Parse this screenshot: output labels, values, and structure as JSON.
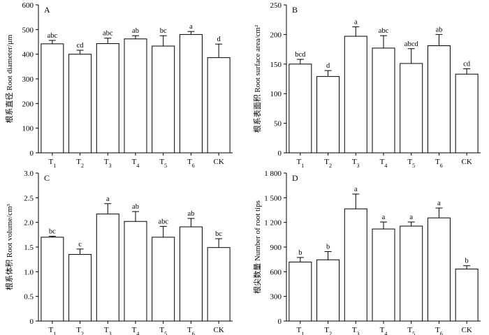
{
  "figure": {
    "description_panels": [
      "A",
      "B",
      "C",
      "D"
    ]
  },
  "chart_data": [
    {
      "panel": "A",
      "type": "bar",
      "ylabel": "根系直径  Root diameter/μm",
      "categories": [
        {
          "base": "T",
          "sub": "1"
        },
        {
          "base": "T",
          "sub": "2"
        },
        {
          "base": "T",
          "sub": "3"
        },
        {
          "base": "T",
          "sub": "4"
        },
        {
          "base": "T",
          "sub": "5"
        },
        {
          "base": "T",
          "sub": "6"
        },
        {
          "base": "CK",
          "sub": ""
        }
      ],
      "values": [
        442,
        400,
        443,
        462,
        433,
        480,
        386
      ],
      "errors": [
        14,
        16,
        22,
        13,
        42,
        12,
        55
      ],
      "significance": [
        "abc",
        "cd",
        "abc",
        "ab",
        "bc",
        "a",
        "d"
      ],
      "ylim": [
        0,
        600
      ],
      "yticks": [
        0,
        100,
        200,
        300,
        400,
        500,
        600
      ],
      "ytick_labels": [
        "0",
        "100",
        "200",
        "300",
        "400",
        "500",
        "600"
      ]
    },
    {
      "panel": "B",
      "type": "bar",
      "ylabel": "根系表面积  Root surface area/cm²",
      "categories": [
        {
          "base": "T",
          "sub": "1"
        },
        {
          "base": "T",
          "sub": "2"
        },
        {
          "base": "T",
          "sub": "3"
        },
        {
          "base": "T",
          "sub": "4"
        },
        {
          "base": "T",
          "sub": "5"
        },
        {
          "base": "T",
          "sub": "6"
        },
        {
          "base": "CK",
          "sub": ""
        }
      ],
      "values": [
        150,
        129,
        197,
        177,
        151,
        181,
        133
      ],
      "errors": [
        8,
        10,
        16,
        21,
        25,
        19,
        9
      ],
      "significance": [
        "bcd",
        "d",
        "a",
        "abc",
        "abcd",
        "ab",
        "cd"
      ],
      "ylim": [
        0,
        250
      ],
      "yticks": [
        0,
        50,
        100,
        150,
        200,
        250
      ],
      "ytick_labels": [
        "0",
        "50",
        "100",
        "150",
        "200",
        "250"
      ]
    },
    {
      "panel": "C",
      "type": "bar",
      "ylabel": "根系体积  Root volume/cm³",
      "categories": [
        {
          "base": "T",
          "sub": "1"
        },
        {
          "base": "T",
          "sub": "2"
        },
        {
          "base": "T",
          "sub": "3"
        },
        {
          "base": "T",
          "sub": "4"
        },
        {
          "base": "T",
          "sub": "5"
        },
        {
          "base": "T",
          "sub": "6"
        },
        {
          "base": "CK",
          "sub": ""
        }
      ],
      "values": [
        1.7,
        1.35,
        2.17,
        2.02,
        1.7,
        1.91,
        1.49
      ],
      "errors": [
        0.02,
        0.11,
        0.21,
        0.2,
        0.22,
        0.17,
        0.18
      ],
      "significance": [
        "bc",
        "c",
        "a",
        "ab",
        "abc",
        "ab",
        "bc"
      ],
      "ylim": [
        0,
        3.0
      ],
      "yticks": [
        0,
        0.5,
        1.0,
        1.5,
        2.0,
        2.5,
        3.0
      ],
      "ytick_labels": [
        "0",
        "0.5",
        "1.0",
        "1.5",
        "2.0",
        "2.5",
        "3.0"
      ]
    },
    {
      "panel": "D",
      "type": "bar",
      "ylabel": "根尖数量  Number of root tips",
      "categories": [
        {
          "base": "T",
          "sub": "1"
        },
        {
          "base": "T",
          "sub": "2"
        },
        {
          "base": "T",
          "sub": "3"
        },
        {
          "base": "T",
          "sub": "4"
        },
        {
          "base": "T",
          "sub": "5"
        },
        {
          "base": "T",
          "sub": "6"
        },
        {
          "base": "CK",
          "sub": ""
        }
      ],
      "values": [
        718,
        745,
        1365,
        1120,
        1155,
        1255,
        633
      ],
      "errors": [
        55,
        100,
        180,
        85,
        50,
        120,
        40
      ],
      "significance": [
        "b",
        "b",
        "a",
        "a",
        "a",
        "a",
        "b"
      ],
      "ylim": [
        0,
        1800
      ],
      "yticks": [
        0,
        300,
        600,
        900,
        1200,
        1500,
        1800
      ],
      "ytick_labels": [
        "0",
        "300",
        "600",
        "900",
        "1 200",
        "1 500",
        "1 800"
      ]
    }
  ]
}
